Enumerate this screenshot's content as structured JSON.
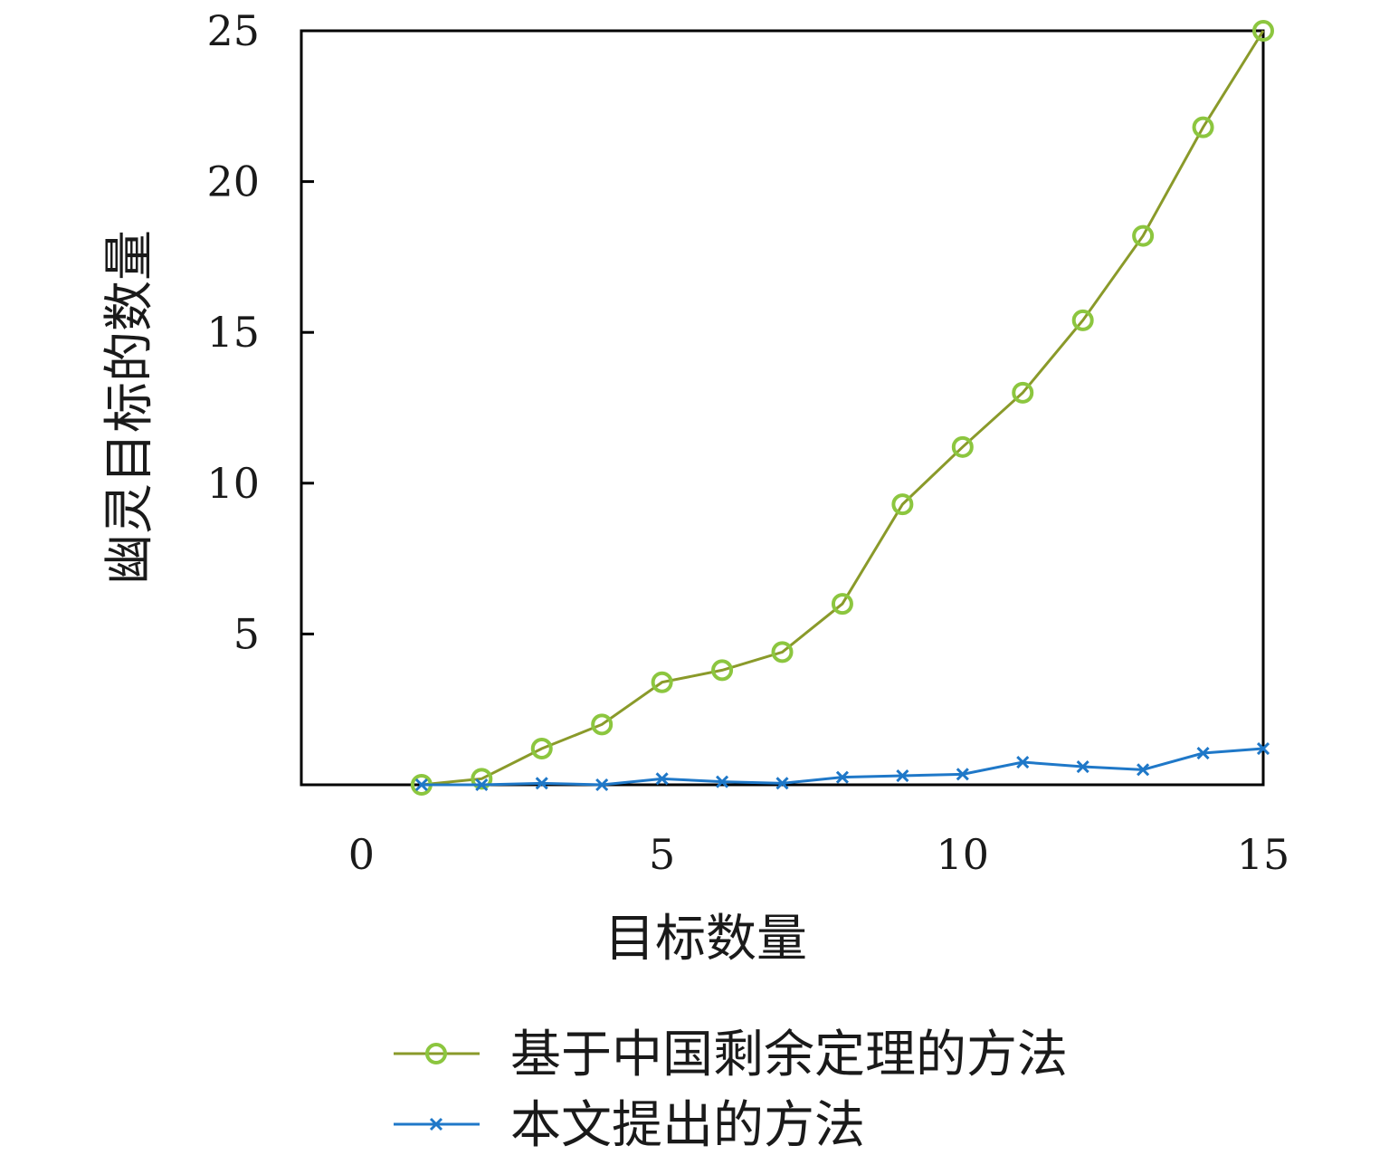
{
  "chart_data": {
    "type": "line",
    "xlabel": "目标数量",
    "ylabel": "幽灵目标的数量",
    "xlim": [
      -1,
      15
    ],
    "ylim": [
      0,
      25
    ],
    "xticks": [
      0,
      5,
      10,
      15
    ],
    "yticks": [
      5,
      10,
      15,
      20,
      25
    ],
    "grid": false,
    "legend_position": "bottom",
    "series": [
      {
        "name": "基于中国剩余定理的方法",
        "color": "#8a9a2a",
        "marker": "circle",
        "marker_color": "#8cc63f",
        "x": [
          1,
          2,
          3,
          4,
          5,
          6,
          7,
          8,
          9,
          10,
          11,
          12,
          13,
          14,
          15
        ],
        "y": [
          0.0,
          0.2,
          1.2,
          2.0,
          3.4,
          3.8,
          4.4,
          6.0,
          9.3,
          11.2,
          13.0,
          15.4,
          18.2,
          21.8,
          25.0
        ]
      },
      {
        "name": "本文提出的方法",
        "color": "#1f78c8",
        "marker": "x",
        "marker_color": "#1f78c8",
        "x": [
          1,
          2,
          3,
          4,
          5,
          6,
          7,
          8,
          9,
          10,
          11,
          12,
          13,
          14,
          15
        ],
        "y": [
          0.0,
          0.0,
          0.05,
          0.0,
          0.2,
          0.1,
          0.05,
          0.25,
          0.3,
          0.35,
          0.75,
          0.6,
          0.5,
          1.05,
          1.2
        ]
      }
    ]
  }
}
